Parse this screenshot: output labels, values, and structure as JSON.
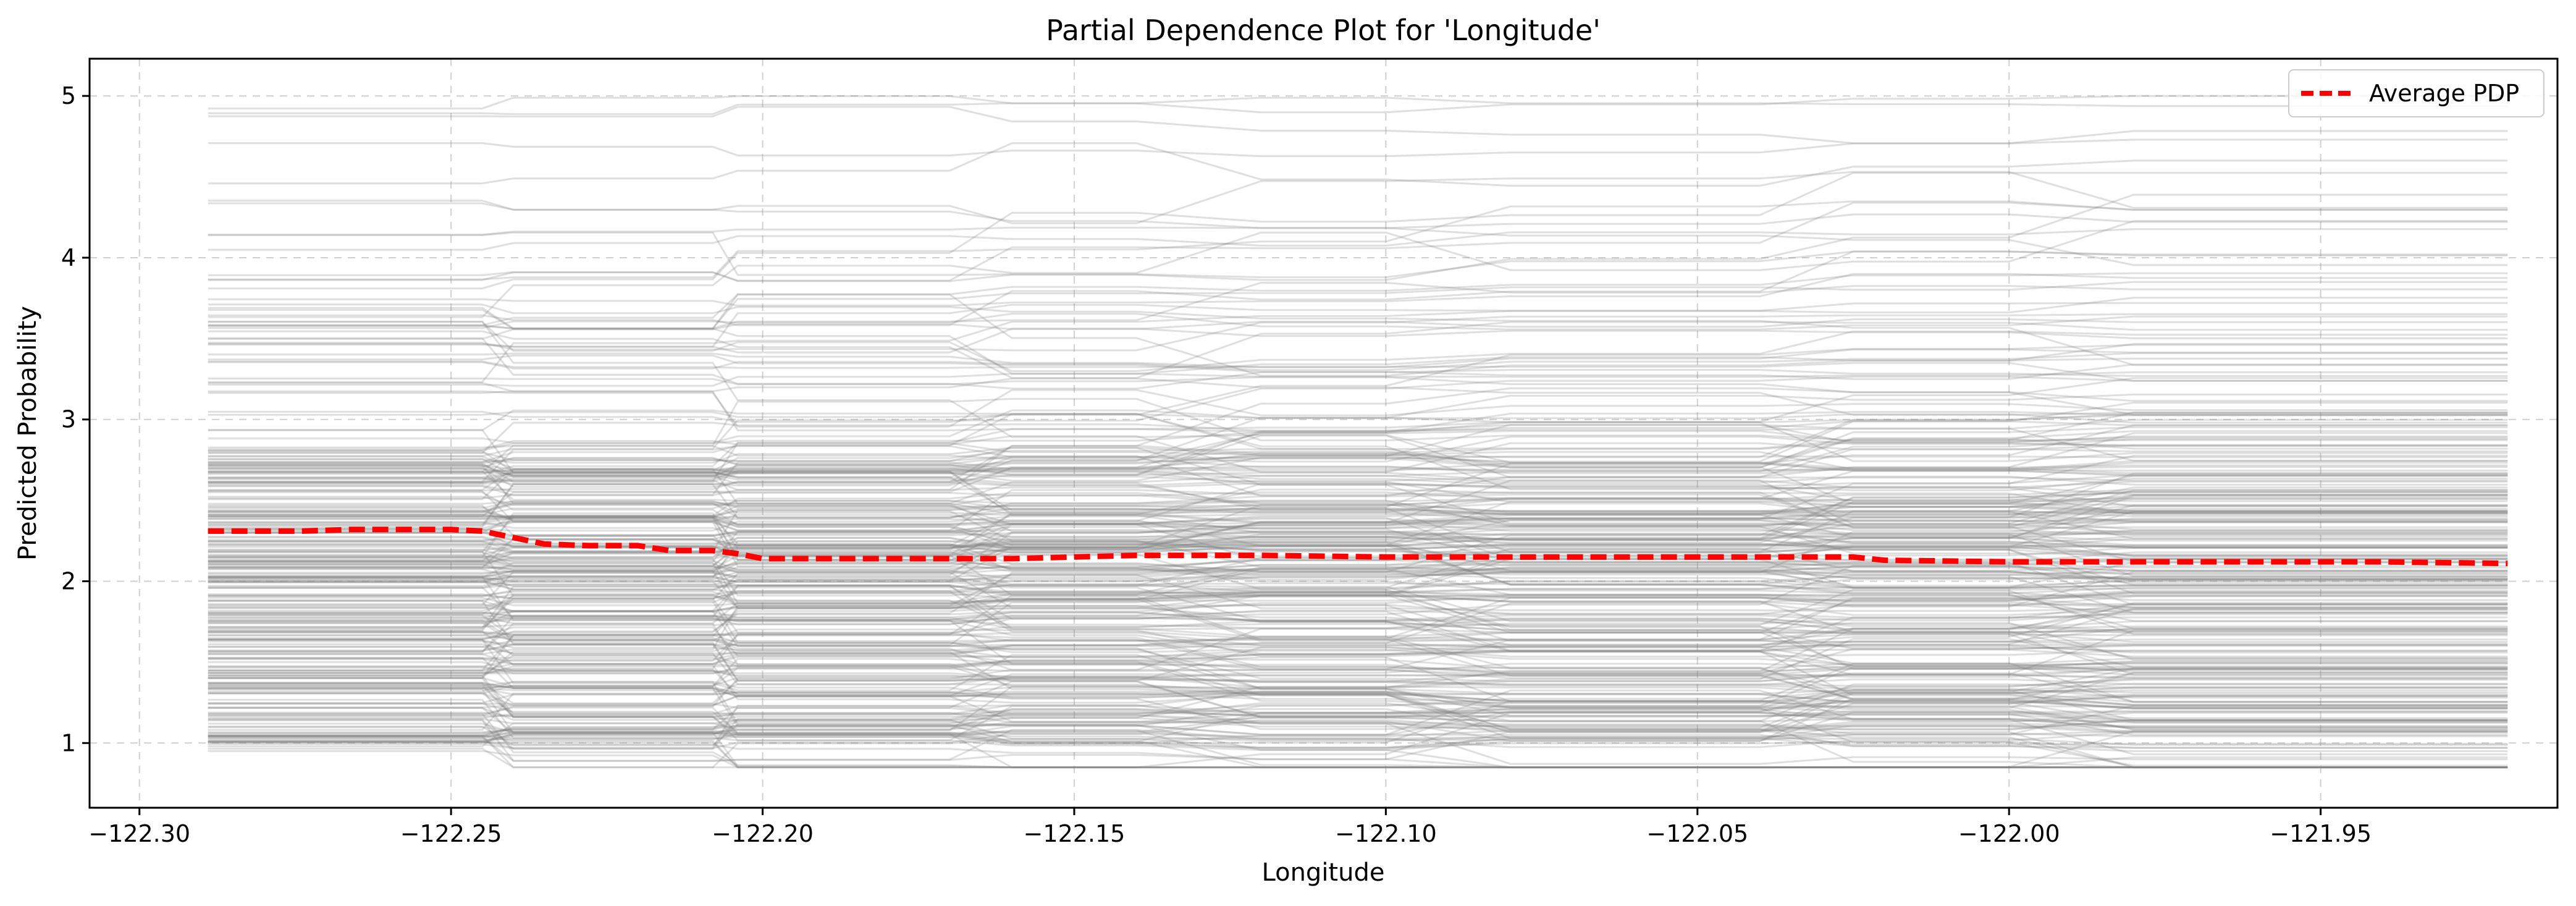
{
  "chart_data": {
    "type": "line",
    "title": "Partial Dependence Plot for 'Longitude'",
    "xlabel": "Longitude",
    "ylabel": "Predicted Probability",
    "xlim": [
      -122.308,
      -121.912
    ],
    "ylim": [
      0.6,
      5.23
    ],
    "xticks": [
      -122.3,
      -122.25,
      -122.2,
      -122.15,
      -122.1,
      -122.05,
      -122.0,
      -121.95
    ],
    "xtick_labels": [
      "−122.30",
      "−122.25",
      "−122.20",
      "−122.15",
      "−122.10",
      "−122.05",
      "−122.00",
      "−121.95"
    ],
    "yticks": [
      1,
      2,
      3,
      4,
      5
    ],
    "ytick_labels": [
      "1",
      "2",
      "3",
      "4",
      "5"
    ],
    "grid": true,
    "legend_position": "top-right",
    "ice_lines": {
      "color": "#808080",
      "opacity": 0.25,
      "y_min": 0.85,
      "y_max": 5.0
    },
    "series": [
      {
        "name": "Average PDP",
        "color": "#ff0000",
        "style": "dashed",
        "x": [
          -122.289,
          -122.282,
          -122.274,
          -122.266,
          -122.258,
          -122.25,
          -122.245,
          -122.24,
          -122.235,
          -122.228,
          -122.22,
          -122.215,
          -122.208,
          -122.204,
          -122.2,
          -122.19,
          -122.18,
          -122.17,
          -122.16,
          -122.15,
          -122.14,
          -122.12,
          -122.1,
          -122.08,
          -122.06,
          -122.04,
          -122.025,
          -122.02,
          -122.0,
          -121.98,
          -121.96,
          -121.94,
          -121.92
        ],
        "values": [
          2.31,
          2.31,
          2.31,
          2.32,
          2.32,
          2.32,
          2.31,
          2.27,
          2.23,
          2.22,
          2.22,
          2.19,
          2.19,
          2.17,
          2.14,
          2.14,
          2.14,
          2.14,
          2.14,
          2.15,
          2.16,
          2.16,
          2.15,
          2.15,
          2.15,
          2.15,
          2.15,
          2.13,
          2.12,
          2.12,
          2.12,
          2.12,
          2.11
        ]
      }
    ]
  }
}
